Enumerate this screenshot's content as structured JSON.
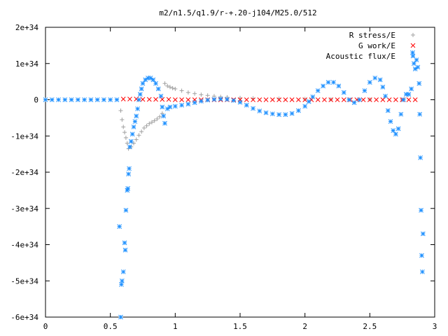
{
  "chart_data": {
    "type": "scatter",
    "title": "m2/n1.5/q1.9/r-+.20-j104/M25.0/512",
    "xlabel": "",
    "ylabel": "",
    "xlim": [
      0,
      3
    ],
    "ylim": [
      -6e+34,
      2e+34
    ],
    "x_ticks": [
      0,
      0.5,
      1,
      1.5,
      2,
      2.5,
      3
    ],
    "x_tick_labels": [
      "0",
      "0.5",
      "1",
      "1.5",
      "2",
      "2.5",
      "3"
    ],
    "y_ticks": [
      2e+34,
      1e+34,
      0,
      -1e+34,
      -2e+34,
      -3e+34,
      -4e+34,
      -5e+34,
      -6e+34
    ],
    "y_tick_labels": [
      "2e+34",
      "1e+34",
      "0",
      "-1e+34",
      "-2e+34",
      "-3e+34",
      "-4e+34",
      "-5e+34",
      "-6e+34"
    ],
    "grid": false,
    "legend_position": "top-right",
    "series": [
      {
        "name": "R stress/E",
        "marker": "+",
        "color": "#a0a0a0",
        "points": [
          [
            0.58,
            -3e+33
          ],
          [
            0.59,
            -5.5e+33
          ],
          [
            0.6,
            -7.5e+33
          ],
          [
            0.61,
            -9e+33
          ],
          [
            0.62,
            -1.05e+34
          ],
          [
            0.63,
            -1.2e+34
          ],
          [
            0.64,
            -1.35e+34
          ],
          [
            0.66,
            -1.3e+34
          ],
          [
            0.68,
            -1.2e+34
          ],
          [
            0.7,
            -1.1e+34
          ],
          [
            0.72,
            -9.8e+33
          ],
          [
            0.74,
            -8.8e+33
          ],
          [
            0.76,
            -7.8e+33
          ],
          [
            0.78,
            -7.2e+33
          ],
          [
            0.8,
            -6.6e+33
          ],
          [
            0.82,
            -6.2e+33
          ],
          [
            0.84,
            -5.8e+33
          ],
          [
            0.86,
            -5.3e+33
          ],
          [
            0.88,
            -4.7e+33
          ],
          [
            0.9,
            -3.8e+33
          ],
          [
            0.92,
            4.5e+33
          ],
          [
            0.94,
            3.8e+33
          ],
          [
            0.96,
            3.5e+33
          ],
          [
            0.98,
            3.2e+33
          ],
          [
            1.0,
            3e+33
          ],
          [
            1.05,
            2.5e+33
          ],
          [
            1.1,
            2e+33
          ],
          [
            1.15,
            1.7e+33
          ],
          [
            1.2,
            1.4e+33
          ],
          [
            1.25,
            1.2e+33
          ],
          [
            1.3,
            1e+33
          ],
          [
            1.35,
            8e+32
          ],
          [
            1.4,
            7e+32
          ],
          [
            1.5,
            5e+32
          ],
          [
            1.6,
            4e+32
          ],
          [
            1.8,
            3e+32
          ],
          [
            2.0,
            2e+32
          ],
          [
            2.2,
            1e+32
          ],
          [
            2.5,
            1e+32
          ],
          [
            2.75,
            0.0
          ]
        ]
      },
      {
        "name": "G work/E",
        "marker": "x",
        "color": "#ff0000",
        "points": [
          [
            0.6,
            2e+32
          ],
          [
            0.65,
            2e+32
          ],
          [
            0.7,
            2e+32
          ],
          [
            0.75,
            1e+32
          ],
          [
            0.8,
            1e+32
          ],
          [
            0.85,
            1e+32
          ],
          [
            0.9,
            1e+32
          ],
          [
            0.95,
            1e+32
          ],
          [
            1.0,
            0.0
          ],
          [
            1.05,
            0.0
          ],
          [
            1.1,
            0.0
          ],
          [
            1.15,
            0.0
          ],
          [
            1.2,
            0.0
          ],
          [
            1.25,
            0.0
          ],
          [
            1.3,
            0.0
          ],
          [
            1.35,
            0.0
          ],
          [
            1.4,
            0.0
          ],
          [
            1.45,
            0.0
          ],
          [
            1.5,
            0.0
          ],
          [
            1.55,
            0.0
          ],
          [
            1.6,
            0.0
          ],
          [
            1.65,
            0.0
          ],
          [
            1.7,
            0.0
          ],
          [
            1.75,
            0.0
          ],
          [
            1.8,
            0.0
          ],
          [
            1.85,
            0.0
          ],
          [
            1.9,
            0.0
          ],
          [
            1.95,
            0.0
          ],
          [
            2.0,
            0.0
          ],
          [
            2.05,
            0.0
          ],
          [
            2.1,
            0.0
          ],
          [
            2.15,
            0.0
          ],
          [
            2.2,
            0.0
          ],
          [
            2.25,
            0.0
          ],
          [
            2.3,
            0.0
          ],
          [
            2.35,
            0.0
          ],
          [
            2.4,
            0.0
          ],
          [
            2.45,
            0.0
          ],
          [
            2.5,
            0.0
          ],
          [
            2.55,
            0.0
          ],
          [
            2.6,
            0.0
          ],
          [
            2.65,
            0.0
          ],
          [
            2.7,
            0.0
          ],
          [
            2.75,
            0.0
          ],
          [
            2.8,
            0.0
          ],
          [
            2.85,
            0.0
          ]
        ]
      },
      {
        "name": "Acoustic flux/E",
        "marker": "*",
        "color": "#1e90ff",
        "points": [
          [
            0.0,
            0.0
          ],
          [
            0.05,
            0.0
          ],
          [
            0.1,
            0.0
          ],
          [
            0.15,
            0.0
          ],
          [
            0.2,
            0.0
          ],
          [
            0.25,
            0.0
          ],
          [
            0.3,
            0.0
          ],
          [
            0.35,
            0.0
          ],
          [
            0.4,
            0.0
          ],
          [
            0.45,
            0.0
          ],
          [
            0.5,
            0.0
          ],
          [
            0.55,
            0.0
          ],
          [
            0.57,
            -3.5e+34
          ],
          [
            0.58,
            -6e+34
          ],
          [
            0.585,
            -5.1e+34
          ],
          [
            0.59,
            -5e+34
          ],
          [
            0.6,
            -4.75e+34
          ],
          [
            0.61,
            -3.95e+34
          ],
          [
            0.615,
            -4.15e+34
          ],
          [
            0.62,
            -3.05e+34
          ],
          [
            0.63,
            -2.5e+34
          ],
          [
            0.635,
            -2.45e+34
          ],
          [
            0.64,
            -2.05e+34
          ],
          [
            0.645,
            -1.9e+34
          ],
          [
            0.65,
            -1.3e+34
          ],
          [
            0.66,
            -1.15e+34
          ],
          [
            0.67,
            -9.5e+33
          ],
          [
            0.68,
            -7.5e+33
          ],
          [
            0.69,
            -6e+33
          ],
          [
            0.7,
            -4.5e+33
          ],
          [
            0.71,
            -2.5e+33
          ],
          [
            0.72,
            0.0
          ],
          [
            0.73,
            1.5e+33
          ],
          [
            0.74,
            3e+33
          ],
          [
            0.75,
            4.5e+33
          ],
          [
            0.77,
            5.5e+33
          ],
          [
            0.79,
            6e+33
          ],
          [
            0.81,
            6e+33
          ],
          [
            0.83,
            5.5e+33
          ],
          [
            0.85,
            4.5e+33
          ],
          [
            0.87,
            3e+33
          ],
          [
            0.89,
            1e+33
          ],
          [
            0.9,
            -2e+33
          ],
          [
            0.91,
            -4.5e+33
          ],
          [
            0.92,
            -6.5e+33
          ],
          [
            0.94,
            -2.5e+33
          ],
          [
            0.96,
            -2e+33
          ],
          [
            1.0,
            -1.8e+33
          ],
          [
            1.05,
            -1.5e+33
          ],
          [
            1.1,
            -1.2e+33
          ],
          [
            1.15,
            -8e+32
          ],
          [
            1.2,
            -4e+32
          ],
          [
            1.25,
            -1e+32
          ],
          [
            1.3,
            1e+32
          ],
          [
            1.35,
            2e+32
          ],
          [
            1.4,
            1e+32
          ],
          [
            1.45,
            -2e+32
          ],
          [
            1.5,
            -7e+32
          ],
          [
            1.55,
            -1.5e+33
          ],
          [
            1.6,
            -2.4e+33
          ],
          [
            1.65,
            -3.1e+33
          ],
          [
            1.7,
            -3.6e+33
          ],
          [
            1.75,
            -3.9e+33
          ],
          [
            1.8,
            -4.1e+33
          ],
          [
            1.85,
            -4.1e+33
          ],
          [
            1.9,
            -3.8e+33
          ],
          [
            1.95,
            -3e+33
          ],
          [
            2.0,
            -1.8e+33
          ],
          [
            2.03,
            -5e+32
          ],
          [
            2.06,
            8e+32
          ],
          [
            2.1,
            2.5e+33
          ],
          [
            2.14,
            3.8e+33
          ],
          [
            2.18,
            4.8e+33
          ],
          [
            2.22,
            4.8e+33
          ],
          [
            2.26,
            3.8e+33
          ],
          [
            2.3,
            2e+33
          ],
          [
            2.34,
            0.0
          ],
          [
            2.38,
            -8e+32
          ],
          [
            2.42,
            0.0
          ],
          [
            2.46,
            2.5e+33
          ],
          [
            2.5,
            4.8e+33
          ],
          [
            2.54,
            6e+33
          ],
          [
            2.58,
            5.5e+33
          ],
          [
            2.6,
            3.5e+33
          ],
          [
            2.62,
            1e+33
          ],
          [
            2.64,
            -3e+33
          ],
          [
            2.66,
            -6e+33
          ],
          [
            2.68,
            -8.5e+33
          ],
          [
            2.7,
            -9.5e+33
          ],
          [
            2.72,
            -8e+33
          ],
          [
            2.74,
            -4e+33
          ],
          [
            2.76,
            0.0
          ],
          [
            2.78,
            1.5e+33
          ],
          [
            2.8,
            1.5e+33
          ],
          [
            2.82,
            3e+33
          ],
          [
            2.83,
            1.3e+34
          ],
          [
            2.84,
            1e+34
          ],
          [
            2.85,
            8.5e+33
          ],
          [
            2.86,
            1.1e+34
          ],
          [
            2.87,
            9e+33
          ],
          [
            2.88,
            4.5e+33
          ],
          [
            2.885,
            -4e+33
          ],
          [
            2.89,
            -1.6e+34
          ],
          [
            2.895,
            -3.05e+34
          ],
          [
            2.9,
            -4.3e+34
          ],
          [
            2.905,
            -4.75e+34
          ],
          [
            2.91,
            -3.7e+34
          ]
        ]
      }
    ]
  }
}
